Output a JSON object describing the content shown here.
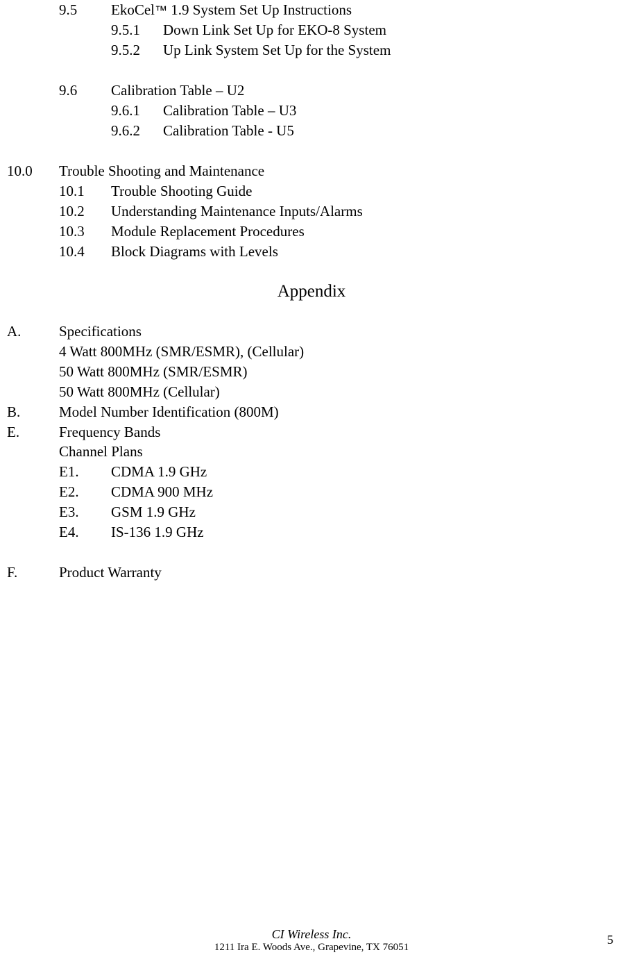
{
  "toc": {
    "s95": {
      "num": "9.5",
      "title_pre": "EkoCel",
      "tm": "™",
      "title_post": "  1.9 System Set Up Instructions"
    },
    "s951": {
      "num": "9.5.1",
      "title": "Down Link Set Up for EKO-8 System"
    },
    "s952": {
      "num": "9.5.2",
      "title": "Up Link System Set Up for the System"
    },
    "s96": {
      "num": "9.6",
      "title": "Calibration Table – U2"
    },
    "s961": {
      "num": "9.6.1",
      "title": "Calibration Table – U3"
    },
    "s962": {
      "num": "9.6.2",
      "title": "Calibration Table - U5"
    },
    "s10": {
      "num": "10.0",
      "title": "Trouble Shooting and Maintenance"
    },
    "s101": {
      "num": "10.1",
      "title": "Trouble Shooting Guide"
    },
    "s102": {
      "num": "10.2",
      "title": "Understanding Maintenance Inputs/Alarms"
    },
    "s103": {
      "num": "10.3",
      "title": "Module Replacement Procedures"
    },
    "s104": {
      "num": "10.4",
      "title": "Block Diagrams with Levels"
    }
  },
  "appendix": {
    "heading": "Appendix",
    "A": {
      "num": "A.",
      "title": "Specifications"
    },
    "A_sub1": "4 Watt 800MHz (SMR/ESMR), (Cellular)",
    "A_sub2": "50 Watt 800MHz (SMR/ESMR)",
    "A_sub3": "50 Watt 800MHz (Cellular)",
    "B": {
      "num": "B.",
      "title": "Model Number Identification (800M)"
    },
    "E": {
      "num": "E.",
      "title": "Frequency Bands"
    },
    "E_sub0": " Channel Plans",
    "E1": {
      "num": "E1.",
      "title": "CDMA  1.9 GHz"
    },
    "E2": {
      "num": "E2.",
      "title": "CDMA  900 MHz"
    },
    "E3": {
      "num": "E3.",
      "title": "GSM  1.9 GHz"
    },
    "E4": {
      "num": "E4.",
      "title": "IS-136  1.9 GHz"
    },
    "F": {
      "num": "F.",
      "title": "Product Warranty"
    }
  },
  "footer": {
    "company": "CI Wireless Inc.",
    "address": "1211 Ira E. Woods Ave., Grapevine, TX 76051",
    "page": "5"
  }
}
